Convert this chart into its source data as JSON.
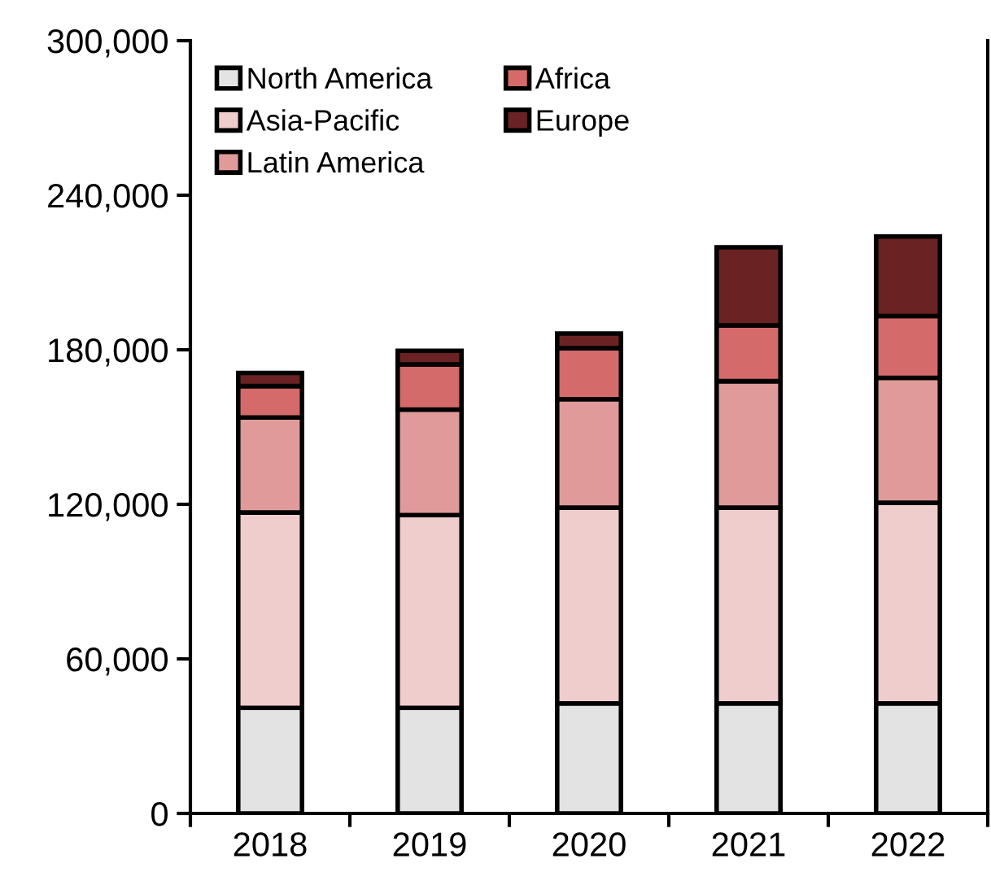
{
  "chart_data": {
    "type": "bar",
    "stacked": true,
    "categories": [
      "2018",
      "2019",
      "2020",
      "2021",
      "2022"
    ],
    "series": [
      {
        "name": "North America",
        "color": "#e3e3e3",
        "values": [
          41000,
          41000,
          42700,
          42700,
          42700
        ]
      },
      {
        "name": "Asia-Pacific",
        "color": "#efcdcd",
        "values": [
          75800,
          74800,
          76000,
          76000,
          77900
        ]
      },
      {
        "name": "Latin America",
        "color": "#e09a9a",
        "values": [
          36900,
          41000,
          42100,
          49100,
          48500
        ]
      },
      {
        "name": "Africa",
        "color": "#d46a6a",
        "values": [
          12200,
          17500,
          19800,
          21700,
          24000
        ]
      },
      {
        "name": "Europe",
        "color": "#6b2222",
        "values": [
          5100,
          5300,
          5700,
          30300,
          30900
        ]
      }
    ],
    "ylim": [
      0,
      300000
    ],
    "yticks": [
      {
        "value": 0,
        "label": "0"
      },
      {
        "value": 60000,
        "label": "60,000"
      },
      {
        "value": 120000,
        "label": "120,000"
      },
      {
        "value": 180000,
        "label": "180,000"
      },
      {
        "value": 240000,
        "label": "240,000"
      },
      {
        "value": 300000,
        "label": "300,000"
      }
    ],
    "grid": false,
    "legend": "top left"
  }
}
